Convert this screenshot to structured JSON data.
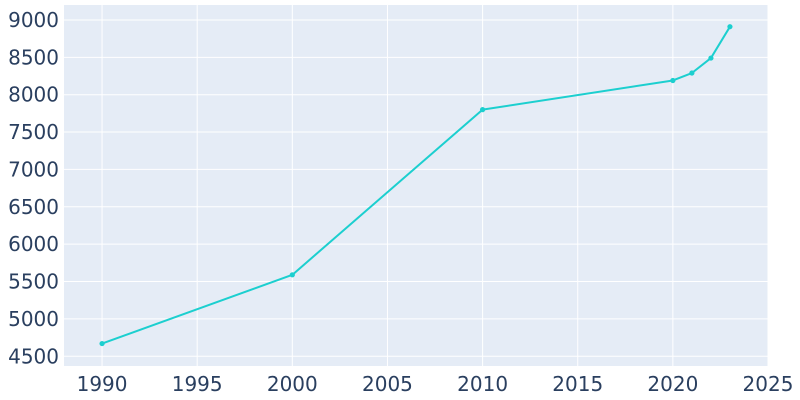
{
  "chart_data": {
    "type": "line",
    "title": "",
    "xlabel": "",
    "ylabel": "",
    "x": [
      1990,
      2000,
      2010,
      2020,
      2021,
      2022,
      2023
    ],
    "series": [
      {
        "values": [
          4670,
          5590,
          7800,
          8190,
          8290,
          8490,
          8910
        ]
      }
    ],
    "xlim": [
      1988,
      2025
    ],
    "ylim": [
      4370,
      9200
    ],
    "xticks": [
      1990,
      1995,
      2000,
      2005,
      2010,
      2015,
      2020,
      2025
    ],
    "yticks": [
      4500,
      5000,
      5500,
      6000,
      6500,
      7000,
      7500,
      8000,
      8500,
      9000
    ],
    "grid": true,
    "legend": "none",
    "colors": {
      "plot_background": "#e5ecf6",
      "grid": "#ffffff",
      "line": "#1ccfcf",
      "tick_text": "#2a3f5f"
    }
  }
}
